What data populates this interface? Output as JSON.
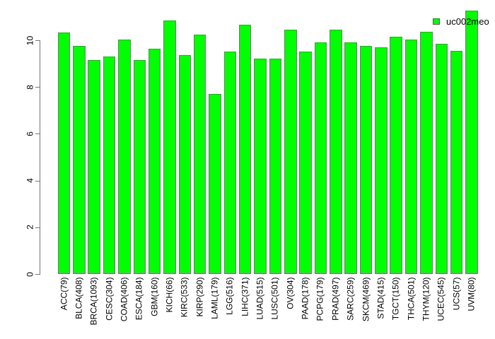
{
  "chart_data": {
    "type": "bar",
    "title": "",
    "xlabel": "",
    "ylabel": "",
    "legend": {
      "label": "uc002meo",
      "color": "#00ff00",
      "position": "top-right"
    },
    "categories": [
      "ACC(79)",
      "BLCA(408)",
      "BRCA(1093)",
      "CESC(304)",
      "COAD(406)",
      "ESCA(184)",
      "GBM(160)",
      "KICH(66)",
      "KIRC(533)",
      "KIRP(290)",
      "LAML(179)",
      "LGG(516)",
      "LIHC(371)",
      "LUAD(515)",
      "LUSC(501)",
      "OV(304)",
      "PAAD(178)",
      "PCPG(179)",
      "PRAD(497)",
      "SARC(259)",
      "SKCM(469)",
      "STAD(415)",
      "TGCT(150)",
      "THCA(501)",
      "THYM(120)",
      "UCEC(545)",
      "UCS(57)",
      "UVM(80)"
    ],
    "series": [
      {
        "name": "uc002meo",
        "values": [
          10.33,
          9.75,
          9.14,
          9.3,
          10.02,
          9.14,
          9.63,
          10.85,
          9.37,
          10.23,
          7.71,
          9.52,
          10.66,
          9.2,
          9.2,
          10.44,
          9.51,
          9.91,
          10.44,
          9.91,
          9.75,
          9.71,
          10.16,
          10.03,
          10.36,
          9.86,
          9.54,
          11.27
        ]
      }
    ],
    "yticks": [
      0,
      2,
      4,
      6,
      8,
      10
    ],
    "ylim": [
      0,
      11.3
    ],
    "grid": false,
    "bar_fill": "#00ff00",
    "bar_border": "#777777",
    "axis_color": "#757575",
    "text_color": "#000000"
  }
}
